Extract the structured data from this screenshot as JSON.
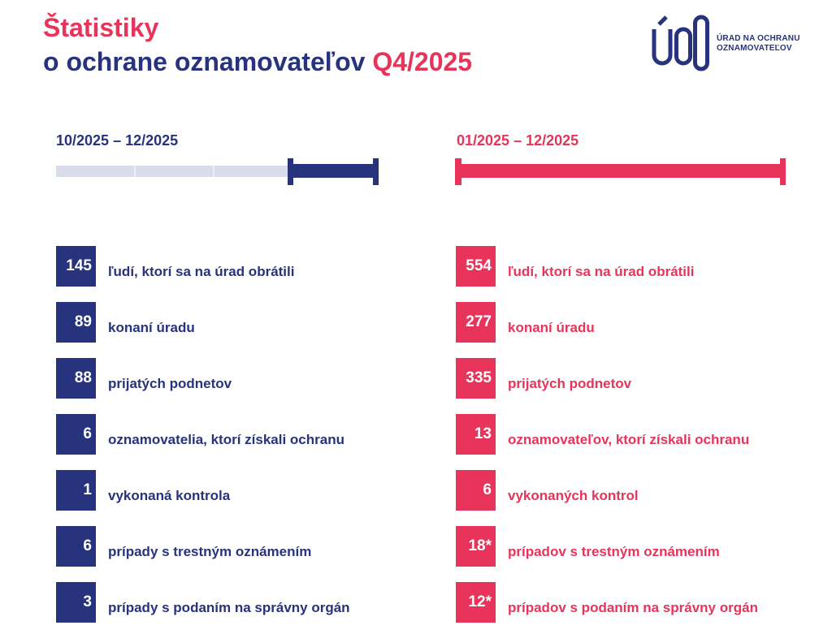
{
  "header": {
    "title_line1": "Štatistiky",
    "title_line2": "o ochrane oznamovateľov",
    "title_period": "Q4/2025"
  },
  "logo": {
    "mark": "ÚOO",
    "line1": "ÚRAD NA OCHRANU",
    "line2": "OZNAMOVATEĽOV"
  },
  "colors": {
    "navy": "#27337c",
    "pink": "#e8345a",
    "track": "#d9dcea"
  },
  "quarter": {
    "period": "10/2025 – 12/2025",
    "timeline_fill_fraction": 0.25,
    "stats": [
      {
        "value": "145",
        "label": "ľudí, ktorí sa na úrad obrátili"
      },
      {
        "value": "89",
        "label": "konaní úradu"
      },
      {
        "value": "88",
        "label": "prijatých podnetov"
      },
      {
        "value": "6",
        "label": "oznamovatelia, ktorí získali ochranu"
      },
      {
        "value": "1",
        "label": "vykonaná kontrola"
      },
      {
        "value": "6",
        "label": "prípady s trestným oznámením"
      },
      {
        "value": "3",
        "label": "prípady s podaním na správny orgán"
      }
    ]
  },
  "year": {
    "period": "01/2025 – 12/2025",
    "timeline_fill_fraction": 1.0,
    "stats": [
      {
        "value": "554",
        "label": "ľudí, ktorí sa na úrad obrátili"
      },
      {
        "value": "277",
        "label": "konaní úradu"
      },
      {
        "value": "335",
        "label": "prijatých podnetov"
      },
      {
        "value": "13",
        "label": "oznamovateľov, ktorí získali ochranu"
      },
      {
        "value": "6",
        "label": "vykonaných kontrol"
      },
      {
        "value": "18*",
        "label": "prípadov s trestným oznámením"
      },
      {
        "value": "12*",
        "label": "prípadov s podaním na správny orgán"
      }
    ]
  }
}
